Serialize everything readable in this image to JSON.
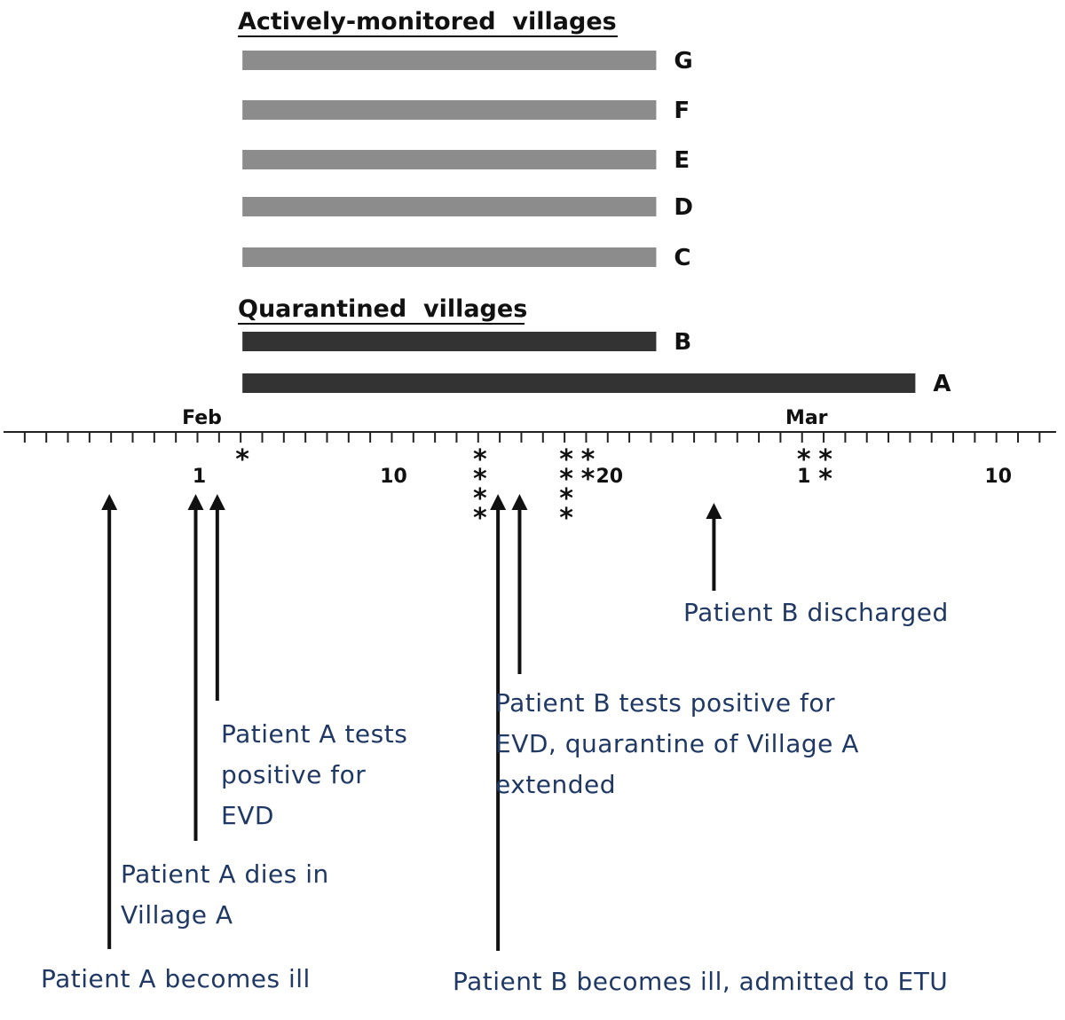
{
  "sections": {
    "monitored_title": "Actively-monitored  villages",
    "quarantined_title": "Quarantined  villages"
  },
  "colors": {
    "monitored_bar": "#8c8c8c",
    "quarantined_bar": "#333333",
    "event_text": "#1f3864",
    "axis": "#222222"
  },
  "timeline": {
    "month_labels": [
      {
        "text": "Feb",
        "date": "Feb 1"
      },
      {
        "text": "Mar",
        "date": "Mar 1"
      }
    ],
    "day_labels": [
      {
        "text": "1",
        "date": "Feb 1"
      },
      {
        "text": "10",
        "date": "Feb 10"
      },
      {
        "text": "20",
        "date": "Feb 20"
      },
      {
        "text": "1",
        "date": "Mar 1"
      },
      {
        "text": "10",
        "date": "Mar 10"
      }
    ]
  },
  "villages": {
    "monitored": [
      {
        "label": "G",
        "start": "Feb 3",
        "end": "Feb 22"
      },
      {
        "label": "F",
        "start": "Feb 3",
        "end": "Feb 22"
      },
      {
        "label": "E",
        "start": "Feb 3",
        "end": "Feb 22"
      },
      {
        "label": "D",
        "start": "Feb 3",
        "end": "Feb 22"
      },
      {
        "label": "C",
        "start": "Feb 3",
        "end": "Feb 22"
      }
    ],
    "quarantined": [
      {
        "label": "B",
        "start": "Feb 3",
        "end": "Feb 22"
      },
      {
        "label": "A",
        "start": "Feb 3",
        "end": "Mar 6"
      }
    ]
  },
  "star_marks": [
    {
      "date": "Feb 3",
      "count": 1
    },
    {
      "date": "Feb 14",
      "count": 4
    },
    {
      "date": "Feb 18",
      "count": 4
    },
    {
      "date": "Feb 19",
      "count": 2
    },
    {
      "date": "Mar 1",
      "count": 1
    },
    {
      "date": "Mar 2",
      "count": 2
    }
  ],
  "events": [
    {
      "date": "Jan 28",
      "lines": [
        "Patient A becomes ill"
      ]
    },
    {
      "date": "Feb 1",
      "lines": [
        "Patient A dies in",
        "Village A"
      ]
    },
    {
      "date": "Feb 2",
      "lines": [
        "Patient A tests",
        "positive  for",
        "EVD"
      ]
    },
    {
      "date": "Feb 15",
      "lines": [
        "Patient B becomes ill, admitted to ETU"
      ]
    },
    {
      "date": "Feb 16",
      "lines": [
        "Patient B tests positive  for",
        "EVD, quarantine  of Village A",
        "extended"
      ]
    },
    {
      "date": "Feb 25",
      "lines": [
        "Patient B discharged"
      ]
    }
  ],
  "star_symbol": "*"
}
